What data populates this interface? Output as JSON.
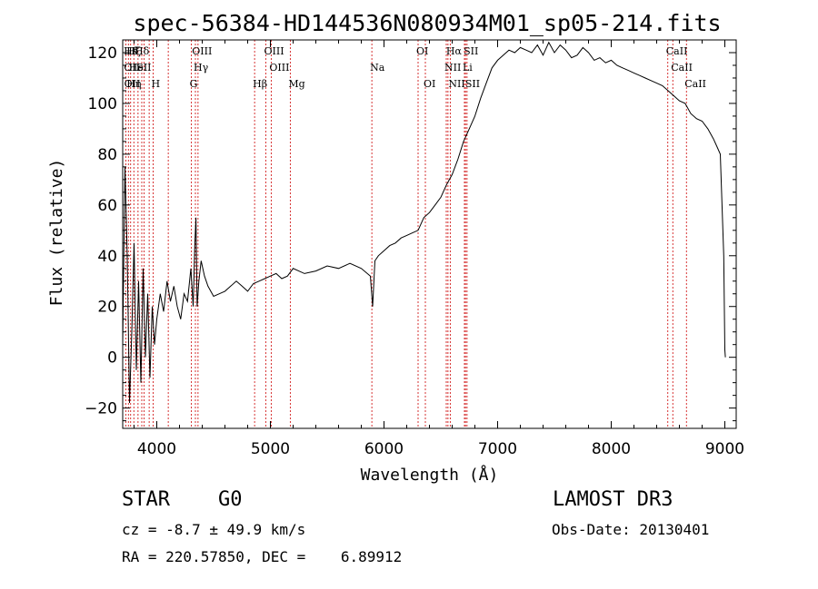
{
  "chart_data": {
    "type": "line",
    "title": "spec-56384-HD144536N080934M01_sp05-214.fits",
    "xlabel": "Wavelength (Å)",
    "ylabel": "Flux (relative)",
    "xlim": [
      3700,
      9100
    ],
    "ylim": [
      -28,
      125
    ],
    "xticks": [
      4000,
      5000,
      6000,
      7000,
      8000,
      9000
    ],
    "xtick_labels": [
      "4000",
      "5000",
      "6000",
      "7000",
      "8000",
      "9000"
    ],
    "yticks": [
      -20,
      0,
      20,
      40,
      60,
      80,
      100,
      120
    ],
    "ytick_labels": [
      "−20",
      "0",
      "20",
      "40",
      "60",
      "80",
      "100",
      "120"
    ],
    "line_color": "#000000",
    "marker_color": "#cc0000",
    "series": [
      {
        "name": "flux",
        "x": [
          3700,
          3720,
          3740,
          3760,
          3780,
          3800,
          3820,
          3840,
          3860,
          3880,
          3900,
          3920,
          3940,
          3960,
          3980,
          4000,
          4030,
          4060,
          4090,
          4120,
          4150,
          4180,
          4210,
          4240,
          4270,
          4300,
          4320,
          4335,
          4345,
          4355,
          4370,
          4390,
          4420,
          4450,
          4500,
          4550,
          4600,
          4650,
          4700,
          4750,
          4800,
          4850,
          4900,
          4950,
          5000,
          5050,
          5100,
          5150,
          5200,
          5300,
          5400,
          5500,
          5600,
          5700,
          5800,
          5880,
          5900,
          5920,
          5950,
          6000,
          6050,
          6100,
          6150,
          6200,
          6250,
          6300,
          6350,
          6400,
          6450,
          6500,
          6550,
          6600,
          6650,
          6700,
          6750,
          6800,
          6850,
          6900,
          6950,
          7000,
          7050,
          7100,
          7150,
          7200,
          7250,
          7300,
          7350,
          7400,
          7450,
          7500,
          7550,
          7600,
          7650,
          7700,
          7750,
          7800,
          7850,
          7900,
          7950,
          8000,
          8050,
          8100,
          8150,
          8200,
          8250,
          8300,
          8350,
          8400,
          8450,
          8500,
          8550,
          8600,
          8650,
          8700,
          8750,
          8800,
          8850,
          8900,
          8930,
          8960,
          8990,
          9000,
          9005
        ],
        "y": [
          5,
          75,
          40,
          -18,
          10,
          45,
          -5,
          30,
          -10,
          35,
          0,
          25,
          -8,
          20,
          5,
          15,
          25,
          18,
          30,
          22,
          28,
          20,
          15,
          25,
          22,
          35,
          20,
          45,
          55,
          20,
          30,
          38,
          32,
          28,
          24,
          25,
          26,
          28,
          30,
          28,
          26,
          29,
          30,
          31,
          32,
          33,
          31,
          32,
          35,
          33,
          34,
          36,
          35,
          37,
          35,
          32,
          20,
          38,
          40,
          42,
          44,
          45,
          47,
          48,
          49,
          50,
          55,
          57,
          60,
          63,
          68,
          72,
          78,
          85,
          90,
          95,
          102,
          108,
          114,
          117,
          119,
          121,
          120,
          122,
          121,
          120,
          123,
          119,
          124,
          120,
          123,
          121,
          118,
          119,
          122,
          120,
          117,
          118,
          116,
          117,
          115,
          114,
          113,
          112,
          111,
          110,
          109,
          108,
          107,
          105,
          103,
          101,
          100,
          96,
          94,
          93,
          90,
          86,
          83,
          80,
          40,
          3,
          0
        ]
      }
    ],
    "line_markers": [
      {
        "name": "Hδ",
        "x": 3725,
        "row": 1
      },
      {
        "name": "Hζ",
        "x": 3750,
        "row": 1
      },
      {
        "name": "K",
        "x": 3790,
        "row": 1
      },
      {
        "name": "Hδ",
        "x": 3820,
        "row": 1
      },
      {
        "name": "OIII",
        "x": 4326,
        "row": 1
      },
      {
        "name": "OIII",
        "x": 4960,
        "row": 1
      },
      {
        "name": "OI",
        "x": 6300,
        "row": 1
      },
      {
        "name": "Hα",
        "x": 6563,
        "row": 1
      },
      {
        "name": "SII",
        "x": 6717,
        "row": 1
      },
      {
        "name": "CaII",
        "x": 8498,
        "row": 1
      },
      {
        "name": "OII",
        "x": 3727,
        "row": 2
      },
      {
        "name": "HeI",
        "x": 3770,
        "row": 2
      },
      {
        "name": "SII",
        "x": 3838,
        "row": 2
      },
      {
        "name": "Hγ",
        "x": 4340,
        "row": 2
      },
      {
        "name": "OIII",
        "x": 5007,
        "row": 2
      },
      {
        "name": "NII",
        "x": 6548,
        "row": 2
      },
      {
        "name": "Li",
        "x": 6708,
        "row": 2
      },
      {
        "name": "CaII",
        "x": 8542,
        "row": 2
      },
      {
        "name": "OII",
        "x": 3729,
        "row": 3
      },
      {
        "name": "Hη",
        "x": 3750,
        "row": 3
      },
      {
        "name": "H",
        "x": 3968,
        "row": 3
      },
      {
        "name": "G",
        "x": 4305,
        "row": 3
      },
      {
        "name": "Hβ",
        "x": 4861,
        "row": 3
      },
      {
        "name": "Mg",
        "x": 5175,
        "row": 3
      },
      {
        "name": "Na",
        "x": 5893,
        "row": 2
      },
      {
        "name": "OI",
        "x": 6364,
        "row": 3
      },
      {
        "name": "NII",
        "x": 6583,
        "row": 3
      },
      {
        "name": "SII",
        "x": 6731,
        "row": 3
      },
      {
        "name": "CaII",
        "x": 8662,
        "row": 3
      }
    ],
    "marker_lines_x": [
      3727,
      3750,
      3770,
      3798,
      3835,
      3868,
      3889,
      3933,
      3968,
      4101,
      4305,
      4340,
      4363,
      4861,
      4959,
      5007,
      5175,
      5893,
      6300,
      6364,
      6548,
      6563,
      6583,
      6708,
      6717,
      6731,
      8498,
      8542,
      8662
    ]
  },
  "object": {
    "class": "STAR",
    "subclass": "G0",
    "survey": "LAMOST DR3",
    "cz": "cz = -8.7 ± 49.9 km/s",
    "obs_date": "Obs-Date: 20130401",
    "coords": "RA = 220.57850, DEC =    6.89912"
  }
}
